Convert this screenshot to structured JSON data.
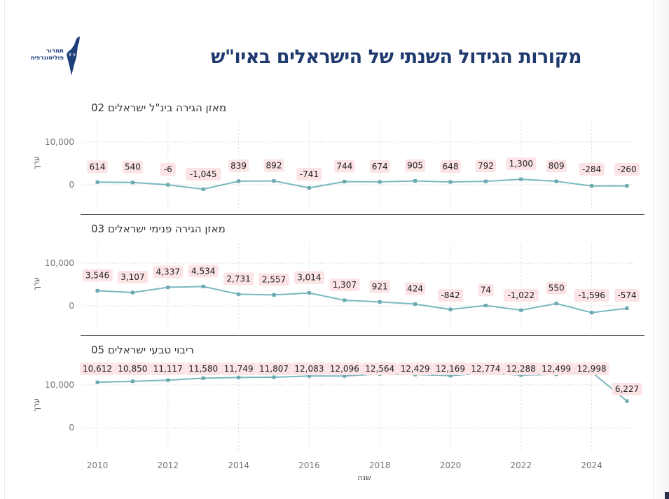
{
  "header": {
    "title": "מקורות הגידול השנתי של הישראלים באיו\"ש",
    "logo_line1": "תמרור",
    "logo_line2": "פוליטוגרפיה"
  },
  "x_axis_title": "שנה",
  "colors": {
    "line": "#7ab8c0",
    "marker": "#6aa9b0",
    "label_bg": "#fbe3e6",
    "title": "#1e3a6e",
    "grid": "#cfcfcf"
  },
  "chart_data": [
    {
      "type": "line",
      "title": "מאזן הגירה בינ\"ל ישראלים 02",
      "xlabel": "שנה",
      "ylabel": "ערך",
      "x": [
        2010,
        2011,
        2012,
        2013,
        2014,
        2015,
        2016,
        2017,
        2018,
        2019,
        2020,
        2021,
        2022,
        2023,
        2024,
        2025
      ],
      "values": [
        614,
        540,
        -6,
        -1045,
        839,
        892,
        -741,
        744,
        674,
        905,
        648,
        792,
        1300,
        809,
        -284,
        -260
      ],
      "labels": [
        "614",
        "540",
        "-6",
        "-1,045",
        "839",
        "892",
        "-741",
        "744",
        "674",
        "905",
        "648",
        "792",
        "1,300",
        "809",
        "-284",
        "-260"
      ],
      "yticks": [
        0,
        10000
      ],
      "ytick_labels": [
        "0",
        "10,000"
      ],
      "ylim": [
        -2500,
        15000
      ],
      "grid": true
    },
    {
      "type": "line",
      "title": "מאזן הגירה פנימי ישראלים 03",
      "xlabel": "שנה",
      "ylabel": "ערך",
      "x": [
        2010,
        2011,
        2012,
        2013,
        2014,
        2015,
        2016,
        2017,
        2018,
        2019,
        2020,
        2021,
        2022,
        2023,
        2024,
        2025
      ],
      "values": [
        3546,
        3107,
        4337,
        4534,
        2731,
        2557,
        3014,
        1307,
        921,
        424,
        -842,
        74,
        -1022,
        550,
        -1596,
        -574
      ],
      "labels": [
        "3,546",
        "3,107",
        "4,337",
        "4,534",
        "2,731",
        "2,557",
        "3,014",
        "1,307",
        "921",
        "424",
        "-842",
        "74",
        "-1,022",
        "550",
        "-1,596",
        "-574"
      ],
      "yticks": [
        0,
        10000
      ],
      "ytick_labels": [
        "0",
        "10,000"
      ],
      "ylim": [
        -2500,
        15000
      ],
      "grid": true
    },
    {
      "type": "line",
      "title": "ריבוי טבעי ישראלים 05",
      "xlabel": "שנה",
      "ylabel": "ערך",
      "x": [
        2010,
        2011,
        2012,
        2013,
        2014,
        2015,
        2016,
        2017,
        2018,
        2019,
        2020,
        2021,
        2022,
        2023,
        2024,
        2025
      ],
      "values": [
        10612,
        10850,
        11117,
        11580,
        11749,
        11807,
        12083,
        12096,
        12564,
        12429,
        12169,
        12774,
        12288,
        12499,
        12998,
        6227
      ],
      "labels": [
        "10,612",
        "10,850",
        "11,117",
        "11,580",
        "11,749",
        "11,807",
        "12,083",
        "12,096",
        "12,564",
        "12,429",
        "12,169",
        "12,774",
        "12,288",
        "12,499",
        "12,998",
        "6,227"
      ],
      "yticks": [
        0,
        10000
      ],
      "ytick_labels": [
        "0",
        "10,000"
      ],
      "ylim": [
        -2500,
        15000
      ],
      "grid": true,
      "xticks": [
        2010,
        2012,
        2014,
        2016,
        2018,
        2020,
        2022,
        2024
      ],
      "xtick_labels": [
        "2010",
        "2012",
        "2014",
        "2016",
        "2018",
        "2020",
        "2022",
        "2024"
      ]
    }
  ]
}
